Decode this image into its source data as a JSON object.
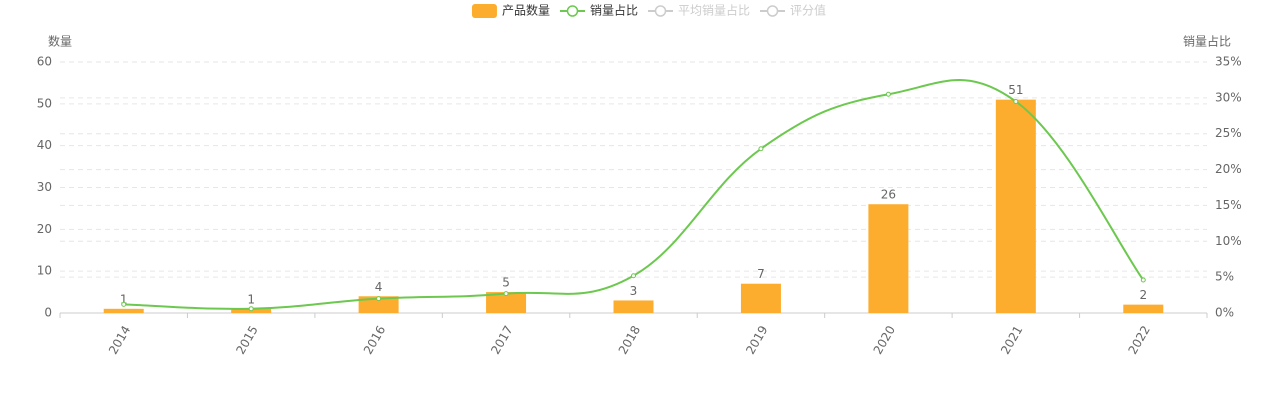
{
  "chart_data": {
    "type": "bar-line",
    "categories": [
      "2014",
      "2015",
      "2016",
      "2017",
      "2018",
      "2019",
      "2020",
      "2021",
      "2022"
    ],
    "y_axis_title": "数量",
    "y2_axis_title": "销量占比",
    "ylim": [
      0,
      60
    ],
    "yticks": [
      0,
      10,
      20,
      30,
      40,
      50,
      60
    ],
    "y2lim": [
      0,
      35
    ],
    "y2ticks": [
      {
        "value": 0,
        "label": "0%"
      },
      {
        "value": 5,
        "label": "5%"
      },
      {
        "value": 10,
        "label": "10%"
      },
      {
        "value": 15,
        "label": "15%"
      },
      {
        "value": 20,
        "label": "20%"
      },
      {
        "value": 25,
        "label": "25%"
      },
      {
        "value": 30,
        "label": "30%"
      },
      {
        "value": 35,
        "label": "35%"
      }
    ],
    "grid": true,
    "series": [
      {
        "name": "产品数量",
        "kind": "bar",
        "color": "#fdad2e",
        "values": [
          1,
          1,
          4,
          5,
          3,
          7,
          26,
          51,
          2
        ]
      },
      {
        "name": "销量占比",
        "kind": "line",
        "axis": "y2",
        "color": "#6cc84e",
        "values": [
          1.2,
          0.6,
          2.0,
          2.7,
          5.2,
          22.9,
          30.5,
          29.5,
          4.6
        ]
      },
      {
        "name": "平均销量占比",
        "kind": "line",
        "axis": "y2",
        "visible": false
      },
      {
        "name": "评分值",
        "kind": "line",
        "visible": false
      }
    ]
  }
}
